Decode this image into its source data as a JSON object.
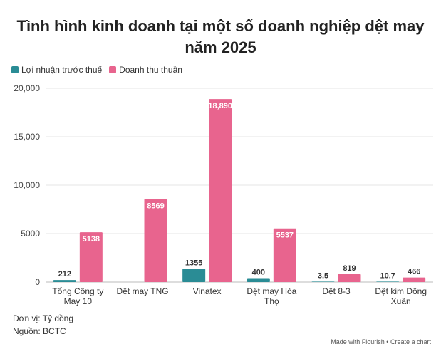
{
  "title": "Tình hình kinh doanh tại một số doanh nghiệp dệt may năm 2025",
  "footer": {
    "unit": "Đơn vị: Tỷ đồng",
    "source": "Nguồn: BCTC",
    "credit": "Made with Flourish • Create a chart"
  },
  "chart_data": {
    "type": "bar",
    "categories": [
      "Tổng Công ty May 10",
      "Dệt may TNG",
      "Vinatex",
      "Dệt may Hòa Thọ",
      "Dệt 8-3",
      "Dệt kim Đông Xuân"
    ],
    "series": [
      {
        "name": "Lợi nhuận trước thuế",
        "color": "#2a8c95",
        "values": [
          212,
          null,
          1355,
          400,
          3.5,
          10.7
        ],
        "labels": [
          "212",
          "",
          "1355",
          "400",
          "3.5",
          "10.7"
        ]
      },
      {
        "name": "Doanh thu thuần",
        "color": "#e8648e",
        "values": [
          5138,
          8569,
          18890,
          5537,
          819,
          466
        ],
        "labels": [
          "5138",
          "8569",
          "18,890",
          "5537",
          "819",
          "466"
        ]
      }
    ],
    "ylim": [
      0,
      20000
    ],
    "yticks": [
      0,
      5000,
      10000,
      15000,
      20000
    ],
    "ytick_labels": [
      "0",
      "5000",
      "10,000",
      "15,000",
      "20,000"
    ],
    "grid": true,
    "legend_position": "top-left"
  }
}
